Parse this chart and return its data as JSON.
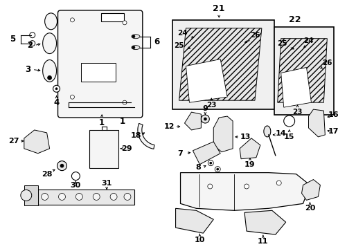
{
  "bg_color": "#ffffff",
  "fig_width": 4.89,
  "fig_height": 3.6,
  "dpi": 100,
  "label_fontsize": 8.5,
  "label_fontsize_sm": 7.5,
  "line_color": "#000000",
  "fill_light": "#f5f5f5",
  "fill_mid": "#e8e8e8",
  "fill_dark": "#d8d8d8",
  "hatch_color": "#888888"
}
